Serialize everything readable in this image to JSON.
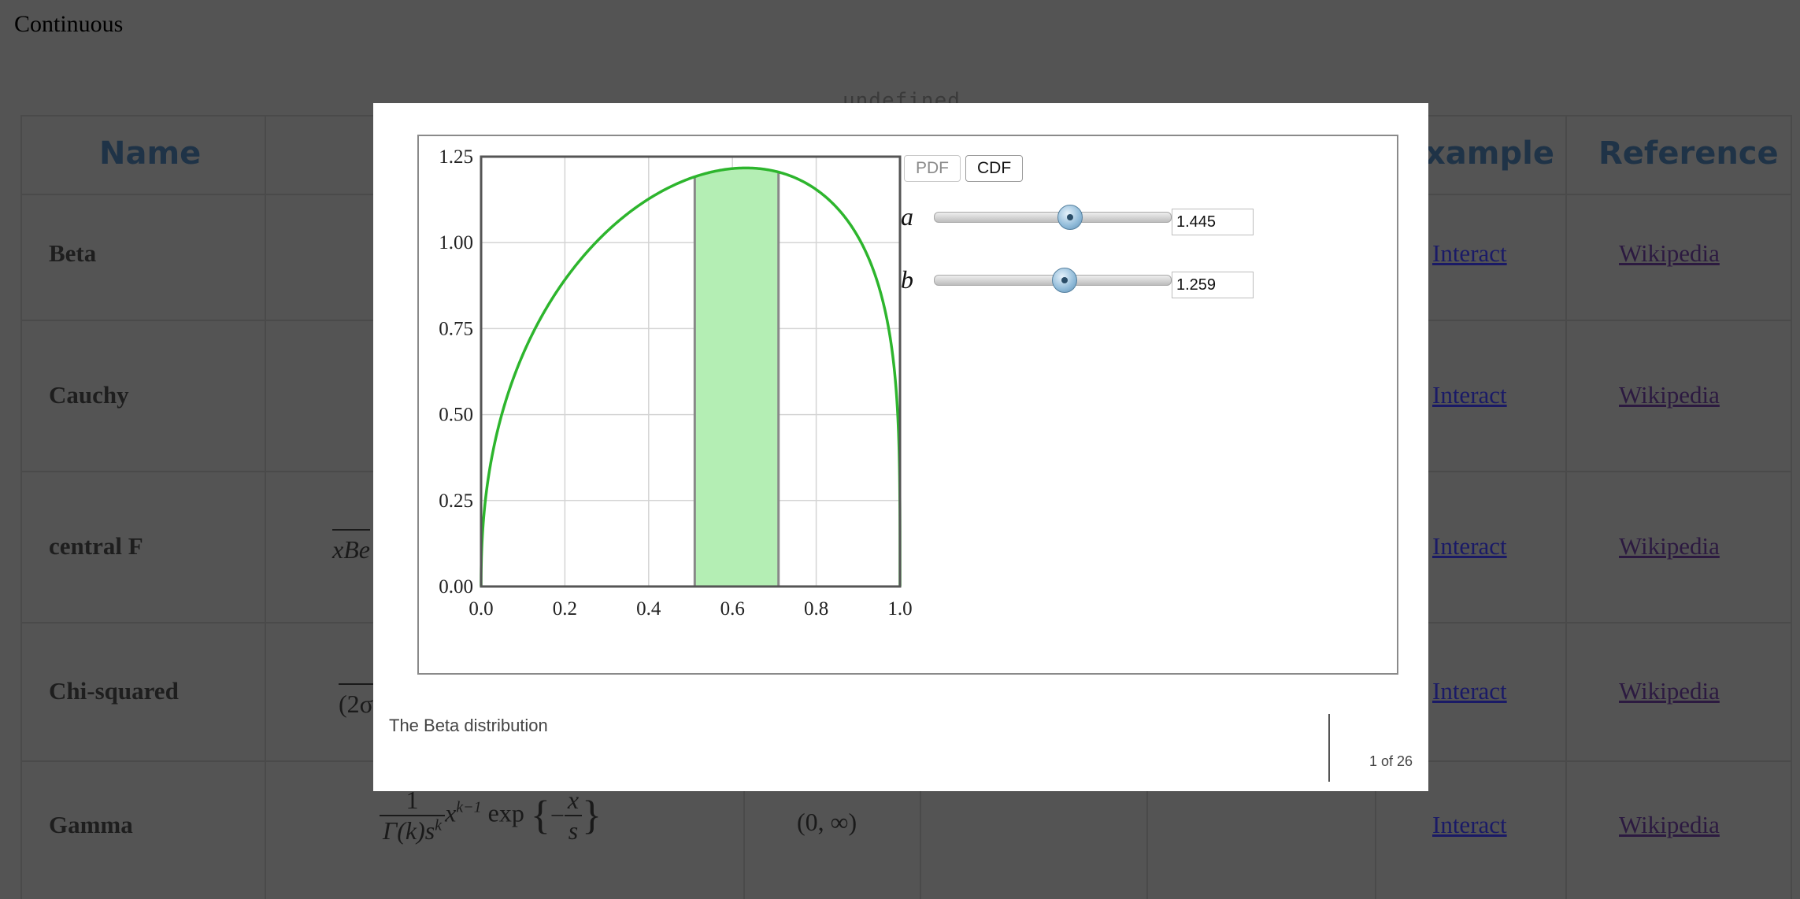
{
  "page": {
    "title": "Continuous",
    "undefined_label": "undefined"
  },
  "table": {
    "headers": {
      "name": "Name",
      "example": "xample",
      "reference": "Reference"
    },
    "rows": [
      {
        "name": "Beta",
        "interact": "Interact",
        "reference": "Wikipedia"
      },
      {
        "name": "Cauchy",
        "interact": "Interact",
        "reference": "Wikipedia"
      },
      {
        "name": "central F",
        "interact": "Interact",
        "reference": "Wikipedia",
        "formula_fragment": "xBe"
      },
      {
        "name": "Chi-squared",
        "interact": "Interact",
        "reference": "Wikipedia",
        "formula_fragment": "(2σ"
      },
      {
        "name": "Gamma",
        "interact": "Interact",
        "reference": "Wikipedia",
        "formula": {
          "numerator": "1",
          "denominator": "Γ(k)s",
          "den_sup": "k",
          "body": "x",
          "body_sup": "k−1",
          "exp": "exp",
          "inner_num": "x",
          "inner_den": "s"
        },
        "support": "(0, ∞)"
      }
    ]
  },
  "modal": {
    "buttons": {
      "pdf": "PDF",
      "cdf": "CDF"
    },
    "params": [
      {
        "label": "a",
        "value": "1.445",
        "slider_fraction": 0.57
      },
      {
        "label": "b",
        "value": "1.259",
        "slider_fraction": 0.545
      }
    ],
    "caption": "The Beta distribution",
    "counter": "1 of 26"
  },
  "chart_data": {
    "type": "area",
    "title": "",
    "xlabel": "",
    "ylabel": "",
    "xlim": [
      0.0,
      1.0
    ],
    "ylim": [
      0.0,
      1.25
    ],
    "x_ticks": [
      "0.0",
      "0.2",
      "0.4",
      "0.6",
      "0.8",
      "1.0"
    ],
    "y_ticks": [
      "0.00",
      "0.25",
      "0.50",
      "0.75",
      "1.00",
      "1.25"
    ],
    "grid": true,
    "series": [
      {
        "color": "#2db52d",
        "distribution": "Beta",
        "alpha": 1.445,
        "beta": 1.259
      }
    ],
    "shaded_interval": [
      0.51,
      0.71
    ],
    "shade_color": "#b4eeb4"
  }
}
